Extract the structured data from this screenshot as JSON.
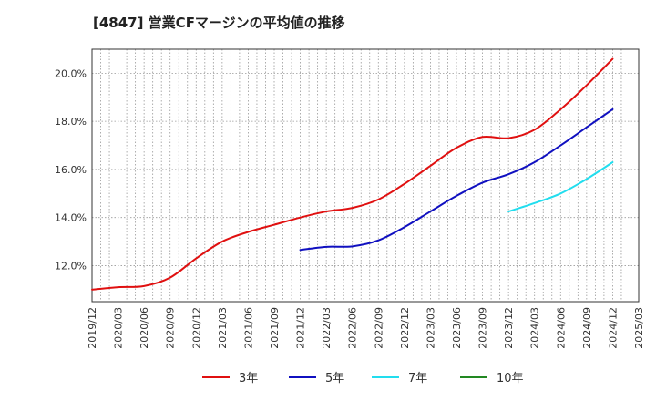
{
  "chart_data": {
    "type": "line",
    "title": "[4847]  営業CFマージンの平均値の推移",
    "xlabel": "",
    "ylabel": "",
    "x": [
      "2019/12",
      "2020/03",
      "2020/06",
      "2020/09",
      "2020/12",
      "2021/03",
      "2021/06",
      "2021/09",
      "2021/12",
      "2022/03",
      "2022/06",
      "2022/09",
      "2022/12",
      "2023/03",
      "2023/06",
      "2023/09",
      "2023/12",
      "2024/03",
      "2024/06",
      "2024/09",
      "2024/12",
      "2025/03"
    ],
    "ylim": [
      10.5,
      21.0
    ],
    "yticks": [
      12.0,
      14.0,
      16.0,
      18.0,
      20.0
    ],
    "ytick_labels": [
      "12.0%",
      "14.0%",
      "16.0%",
      "18.0%",
      "20.0%"
    ],
    "grid": true,
    "legend_position": "bottom",
    "series": [
      {
        "name": "3年",
        "color": "#e01010",
        "values": [
          11.0,
          11.1,
          11.15,
          11.5,
          12.3,
          13.0,
          13.4,
          13.7,
          14.0,
          14.25,
          14.4,
          14.75,
          15.4,
          16.15,
          16.9,
          17.35,
          17.3,
          17.65,
          18.5,
          19.5,
          20.6,
          null
        ]
      },
      {
        "name": "5年",
        "color": "#1010c0",
        "values": [
          null,
          null,
          null,
          null,
          null,
          null,
          null,
          null,
          12.65,
          12.78,
          12.8,
          13.05,
          13.6,
          14.25,
          14.9,
          15.45,
          15.8,
          16.3,
          17.0,
          17.75,
          18.5,
          null
        ]
      },
      {
        "name": "7年",
        "color": "#22ddee",
        "values": [
          null,
          null,
          null,
          null,
          null,
          null,
          null,
          null,
          null,
          null,
          null,
          null,
          null,
          null,
          null,
          null,
          14.25,
          14.6,
          15.0,
          15.6,
          16.3,
          null
        ]
      },
      {
        "name": "10年",
        "color": "#228822",
        "values": [
          null,
          null,
          null,
          null,
          null,
          null,
          null,
          null,
          null,
          null,
          null,
          null,
          null,
          null,
          null,
          null,
          null,
          null,
          null,
          null,
          null,
          null
        ]
      }
    ]
  }
}
